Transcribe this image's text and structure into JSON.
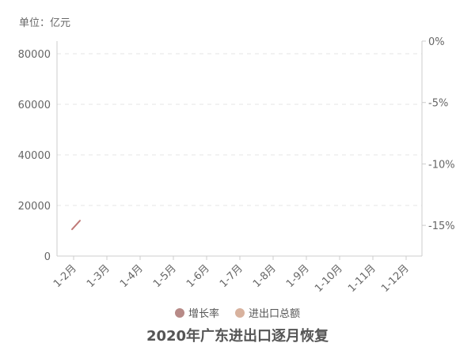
{
  "unit_label": "单位：亿元",
  "legend": [
    {
      "name": "增长率",
      "color": "#b78a87"
    },
    {
      "name": "进出口总额",
      "color": "#d8b29e"
    }
  ],
  "colors": {
    "growth_line": "#c07a78",
    "grid": "#e6e6e6",
    "axis": "#cccccc"
  },
  "chart_data": {
    "type": "line",
    "title": "2020年广东进出口逐月恢复",
    "categories": [
      "1-2月",
      "1-3月",
      "1-4月",
      "1-5月",
      "1-6月",
      "1-7月",
      "1-8月",
      "1-9月",
      "1-10月",
      "1-11月",
      "1-12月"
    ],
    "y_left": {
      "ticks": [
        0,
        20000,
        40000,
        60000,
        80000
      ],
      "tick_labels": [
        "0",
        "20000",
        "40000",
        "60000",
        "80000"
      ],
      "range": [
        0,
        80000
      ]
    },
    "y_right": {
      "ticks": [
        0,
        -5,
        -10,
        -15
      ],
      "tick_labels": [
        "0%",
        "-5%",
        "-10%",
        "-15%"
      ],
      "range": [
        -17.5,
        0
      ],
      "unit": "%"
    },
    "series": [
      {
        "name": "增长率",
        "axis": "right",
        "values": [
          -15.0,
          null,
          null,
          null,
          null,
          null,
          null,
          null,
          null,
          null,
          null
        ]
      },
      {
        "name": "进出口总额",
        "axis": "left",
        "values": [
          null,
          null,
          null,
          null,
          null,
          null,
          null,
          null,
          null,
          null,
          null
        ]
      }
    ],
    "grid": true,
    "legend_position": "bottom"
  }
}
